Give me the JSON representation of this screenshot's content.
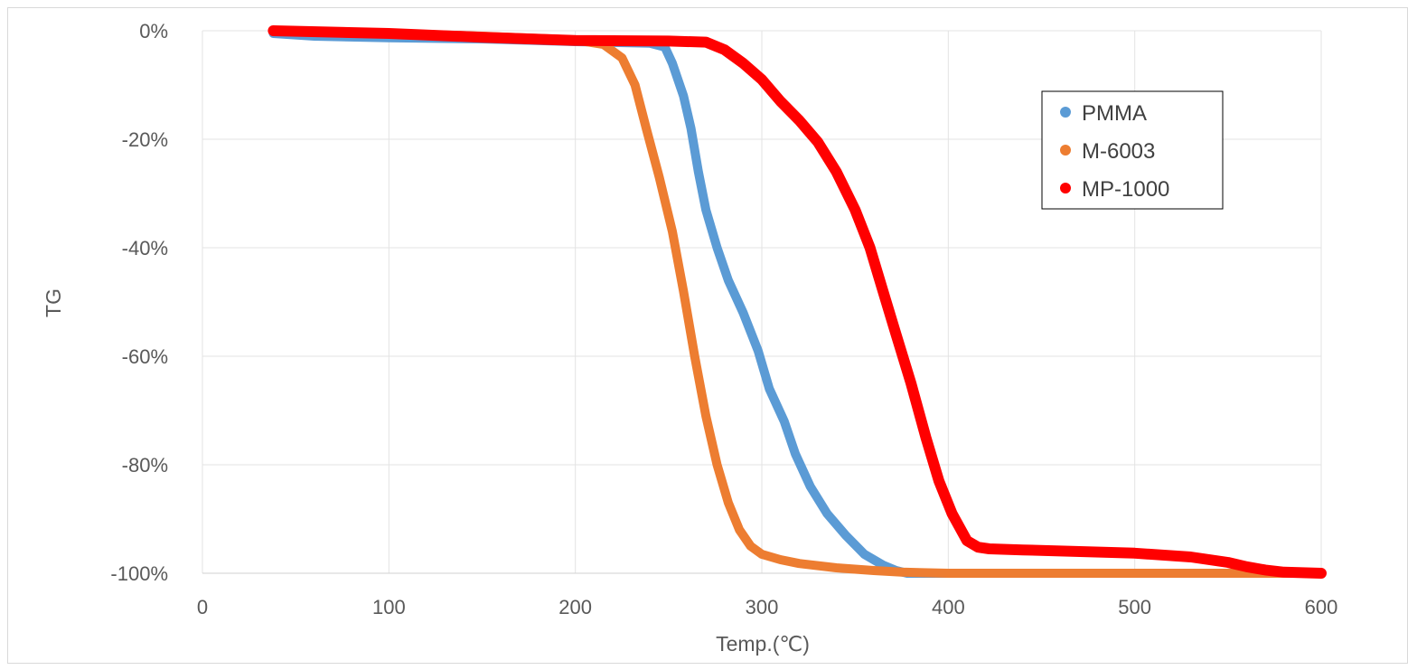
{
  "chart_data": {
    "type": "line",
    "title": "",
    "xlabel": "Temp.(℃)",
    "ylabel": "TG",
    "xlim": [
      0,
      600
    ],
    "ylim": [
      -100,
      0
    ],
    "x_ticks": [
      0,
      100,
      200,
      300,
      400,
      500,
      600
    ],
    "x_tick_labels": [
      "0",
      "100",
      "200",
      "300",
      "400",
      "500",
      "600"
    ],
    "y_ticks": [
      0,
      -20,
      -40,
      -60,
      -80,
      -100
    ],
    "y_tick_labels": [
      "0%",
      "-20%",
      "-40%",
      "-60%",
      "-80%",
      "-100%"
    ],
    "grid": true,
    "legend_position": "top-right",
    "series": [
      {
        "name": "PMMA",
        "color": "#5b9bd5",
        "x": [
          38,
          60,
          100,
          150,
          200,
          240,
          248,
          252,
          258,
          262,
          266,
          270,
          276,
          282,
          290,
          298,
          304,
          312,
          318,
          326,
          335,
          345,
          355,
          365,
          372,
          378,
          400,
          450,
          500,
          550,
          600
        ],
        "y": [
          -0.5,
          -1,
          -1.3,
          -1.5,
          -2,
          -2.3,
          -3,
          -6,
          -12,
          -18,
          -26,
          -33,
          -40,
          -46,
          -52,
          -59,
          -66,
          -72,
          -78,
          -84,
          -89,
          -93,
          -96.5,
          -98.5,
          -99.5,
          -100,
          -100,
          -100,
          -100,
          -100,
          -100
        ]
      },
      {
        "name": "M-6003",
        "color": "#ed7d31",
        "x": [
          38,
          100,
          150,
          200,
          215,
          225,
          232,
          238,
          245,
          252,
          258,
          264,
          270,
          276,
          282,
          288,
          294,
          300,
          310,
          320,
          340,
          360,
          375,
          400,
          500,
          600
        ],
        "y": [
          0,
          -0.5,
          -1,
          -1.7,
          -2.5,
          -5,
          -10,
          -18,
          -27,
          -37,
          -48,
          -60,
          -71,
          -80,
          -87,
          -92,
          -95,
          -96.5,
          -97.5,
          -98.2,
          -99,
          -99.5,
          -99.8,
          -100,
          -100,
          -100
        ]
      },
      {
        "name": "MP-1000",
        "color": "#ff0000",
        "x": [
          38,
          100,
          150,
          200,
          250,
          270,
          280,
          290,
          300,
          310,
          320,
          330,
          340,
          350,
          358,
          365,
          372,
          380,
          388,
          395,
          402,
          410,
          416,
          422,
          440,
          500,
          530,
          550,
          560,
          570,
          580,
          600
        ],
        "y": [
          0,
          -0.5,
          -1.2,
          -1.8,
          -1.9,
          -2.1,
          -3.5,
          -6,
          -9,
          -13,
          -16.5,
          -20.5,
          -26,
          -33,
          -40,
          -48,
          -56,
          -65,
          -75,
          -83,
          -89,
          -94,
          -95.2,
          -95.5,
          -95.7,
          -96.3,
          -97,
          -98,
          -98.8,
          -99.4,
          -99.8,
          -100
        ]
      }
    ]
  }
}
